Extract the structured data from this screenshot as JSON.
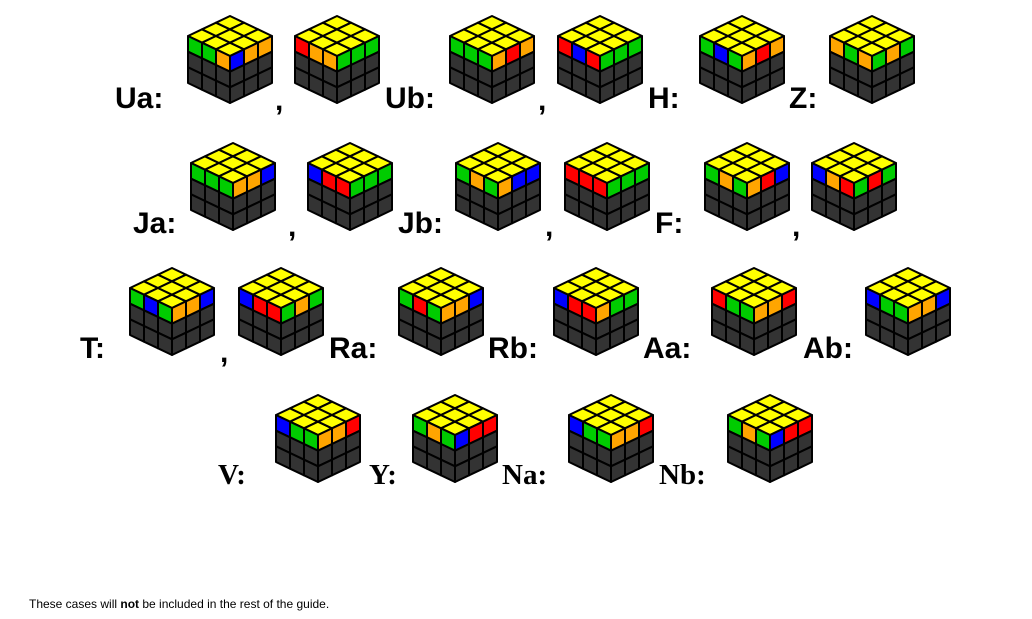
{
  "colors": {
    "yellow": "#ffff00",
    "green": "#00cc00",
    "orange": "#ffa500",
    "red": "#ff0000",
    "blue": "#0000ff",
    "gray": "#333333",
    "outline": "#000000"
  },
  "rows": [
    {
      "cases": [
        {
          "label": "Ua:",
          "cubes": [
            {
              "top_icon": "cube-icon",
              "left": [
                "green",
                "green",
                "orange"
              ],
              "right": [
                "blue",
                "orange",
                "orange"
              ]
            },
            {
              "top_icon": "cube-icon",
              "left": [
                "red",
                "orange",
                "orange"
              ],
              "right": [
                "green",
                "green",
                "green"
              ]
            }
          ]
        },
        {
          "label": "Ub:",
          "cubes": [
            {
              "top_icon": "cube-icon",
              "left": [
                "green",
                "green",
                "green"
              ],
              "right": [
                "orange",
                "red",
                "orange"
              ]
            },
            {
              "top_icon": "cube-icon",
              "left": [
                "red",
                "blue",
                "red"
              ],
              "right": [
                "green",
                "green",
                "green"
              ]
            }
          ]
        },
        {
          "label": "H:",
          "cubes": [
            {
              "top_icon": "cube-icon",
              "left": [
                "green",
                "blue",
                "green"
              ],
              "right": [
                "orange",
                "red",
                "orange"
              ]
            }
          ]
        },
        {
          "label": "Z:",
          "cubes": [
            {
              "top_icon": "cube-icon",
              "left": [
                "orange",
                "green",
                "orange"
              ],
              "right": [
                "green",
                "orange",
                "green"
              ]
            }
          ]
        }
      ],
      "separator": ","
    },
    {
      "cases": [
        {
          "label": "Ja:",
          "cubes": [
            {
              "top_icon": "cube-icon",
              "left": [
                "green",
                "green",
                "green"
              ],
              "right": [
                "orange",
                "orange",
                "blue"
              ]
            },
            {
              "top_icon": "cube-icon",
              "left": [
                "blue",
                "red",
                "red"
              ],
              "right": [
                "green",
                "green",
                "green"
              ]
            }
          ]
        },
        {
          "label": "Jb:",
          "cubes": [
            {
              "top_icon": "cube-icon",
              "left": [
                "green",
                "orange",
                "green"
              ],
              "right": [
                "orange",
                "blue",
                "blue"
              ]
            },
            {
              "top_icon": "cube-icon",
              "left": [
                "red",
                "red",
                "red"
              ],
              "right": [
                "green",
                "green",
                "green"
              ]
            }
          ]
        },
        {
          "label": "F:",
          "cubes": [
            {
              "top_icon": "cube-icon",
              "left": [
                "green",
                "orange",
                "green"
              ],
              "right": [
                "orange",
                "red",
                "blue"
              ]
            },
            {
              "top_icon": "cube-icon",
              "left": [
                "blue",
                "orange",
                "red"
              ],
              "right": [
                "green",
                "red",
                "green"
              ]
            }
          ]
        }
      ]
    },
    {
      "cases": [
        {
          "label": "T:",
          "cubes": [
            {
              "top_icon": "cube-icon",
              "left": [
                "green",
                "blue",
                "green"
              ],
              "right": [
                "orange",
                "orange",
                "blue"
              ]
            },
            {
              "top_icon": "cube-icon",
              "left": [
                "blue",
                "red",
                "red"
              ],
              "right": [
                "green",
                "orange",
                "green"
              ]
            }
          ]
        },
        {
          "label": "Ra:",
          "cubes": [
            {
              "top_icon": "cube-icon",
              "left": [
                "green",
                "red",
                "green"
              ],
              "right": [
                "orange",
                "orange",
                "blue"
              ]
            }
          ]
        },
        {
          "label": "Rb:",
          "cubes": [
            {
              "top_icon": "cube-icon",
              "left": [
                "blue",
                "red",
                "red"
              ],
              "right": [
                "orange",
                "green",
                "green"
              ]
            }
          ]
        },
        {
          "label": "Aa:",
          "cubes": [
            {
              "top_icon": "cube-icon",
              "left": [
                "red",
                "green",
                "green"
              ],
              "right": [
                "orange",
                "orange",
                "red"
              ]
            }
          ]
        },
        {
          "label": "Ab:",
          "cubes": [
            {
              "top_icon": "cube-icon",
              "left": [
                "blue",
                "green",
                "green"
              ],
              "right": [
                "orange",
                "orange",
                "blue"
              ]
            }
          ]
        }
      ]
    },
    {
      "cases": [
        {
          "label": "V:",
          "cubes": [
            {
              "top_icon": "cube-icon",
              "left": [
                "blue",
                "green",
                "green"
              ],
              "right": [
                "orange",
                "orange",
                "red"
              ]
            }
          ]
        },
        {
          "label": "Y:",
          "cubes": [
            {
              "top_icon": "cube-icon",
              "left": [
                "green",
                "orange",
                "green"
              ],
              "right": [
                "blue",
                "red",
                "red"
              ]
            }
          ]
        },
        {
          "label": "Na:",
          "cubes": [
            {
              "top_icon": "cube-icon",
              "left": [
                "blue",
                "green",
                "green"
              ],
              "right": [
                "orange",
                "orange",
                "red"
              ]
            }
          ]
        },
        {
          "label": "Nb:",
          "cubes": [
            {
              "top_icon": "cube-icon",
              "left": [
                "green",
                "orange",
                "green"
              ],
              "right": [
                "blue",
                "red",
                "red"
              ]
            }
          ]
        }
      ]
    }
  ],
  "caption": {
    "before": "These cases will ",
    "emphasis": "not",
    "after": " be included in the rest of the guide."
  }
}
